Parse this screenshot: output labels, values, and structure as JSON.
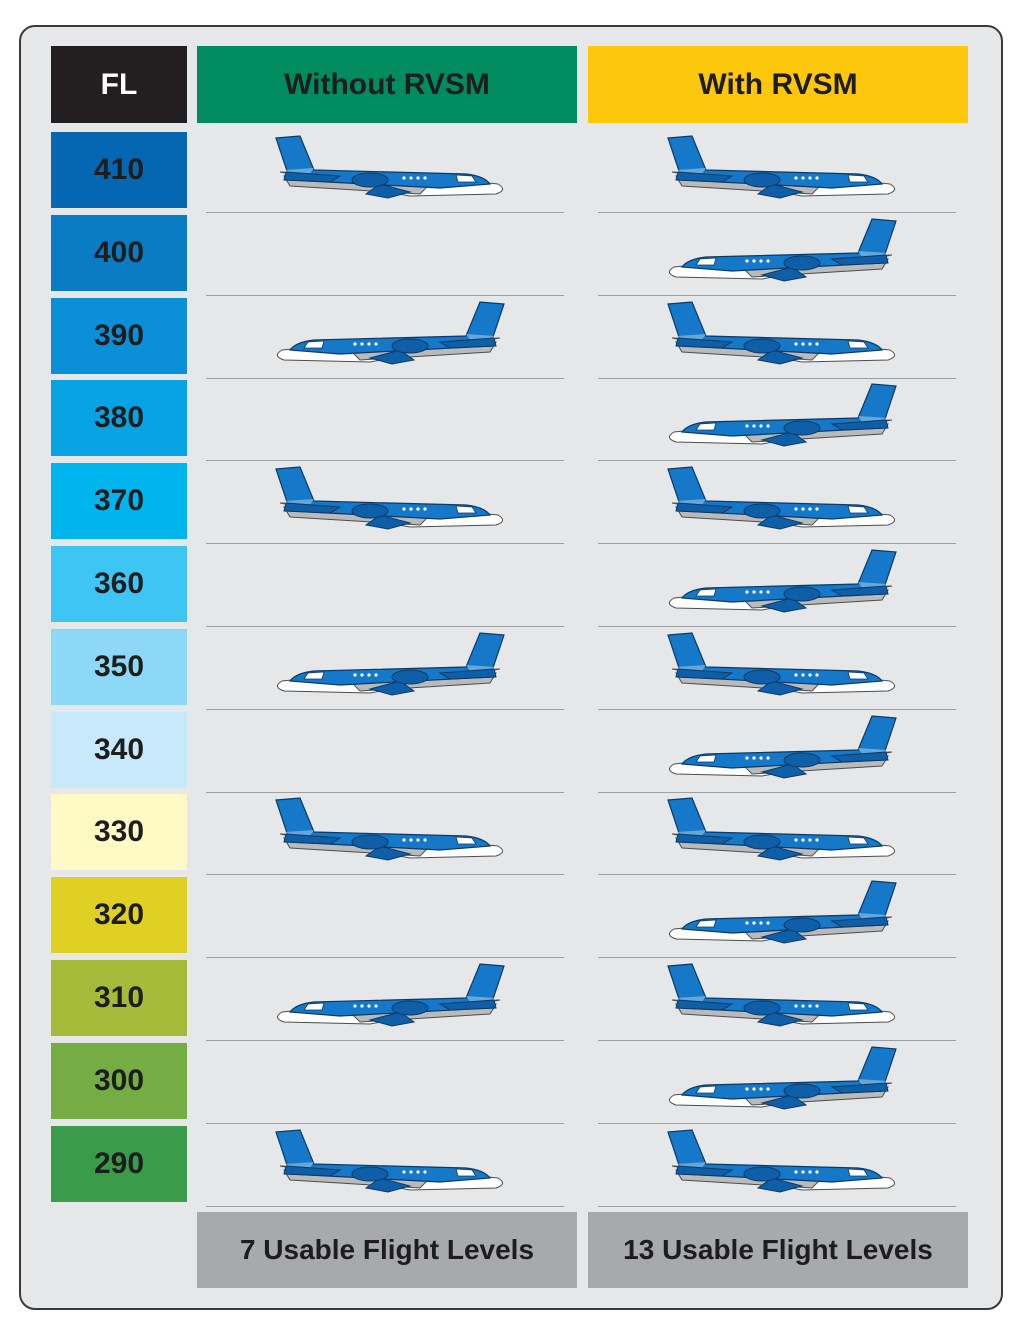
{
  "header": {
    "fl_label": "FL",
    "without_label": "Without RVSM",
    "with_label": "With RVSM"
  },
  "colors": {
    "fl_header": "#231f20",
    "without_header": "#008c5f",
    "with_header": "#fdc70c",
    "footer": "#a7a9ac",
    "panel": "#e6e7e8"
  },
  "levels": [
    {
      "fl": "410",
      "color": "#0567b1",
      "without": "east",
      "with": "east"
    },
    {
      "fl": "400",
      "color": "#0a7cc4",
      "without": "none",
      "with": "west"
    },
    {
      "fl": "390",
      "color": "#0b8fd6",
      "without": "west",
      "with": "east"
    },
    {
      "fl": "380",
      "color": "#07a3e4",
      "without": "none",
      "with": "west"
    },
    {
      "fl": "370",
      "color": "#00b4ee",
      "without": "east",
      "with": "east"
    },
    {
      "fl": "360",
      "color": "#3fc5f3",
      "without": "none",
      "with": "west"
    },
    {
      "fl": "350",
      "color": "#8cd8f6",
      "without": "west",
      "with": "east"
    },
    {
      "fl": "340",
      "color": "#c7e9f9",
      "without": "none",
      "with": "west"
    },
    {
      "fl": "330",
      "color": "#fff9c6",
      "without": "east",
      "with": "east"
    },
    {
      "fl": "320",
      "color": "#e0d023",
      "without": "none",
      "with": "west"
    },
    {
      "fl": "310",
      "color": "#a4ba38",
      "without": "west",
      "with": "east"
    },
    {
      "fl": "300",
      "color": "#74ad44",
      "without": "none",
      "with": "west"
    },
    {
      "fl": "290",
      "color": "#3a9b4a",
      "without": "east",
      "with": "east"
    }
  ],
  "footer": {
    "without_label": "7 Usable Flight Levels",
    "with_label": "13 Usable Flight Levels"
  },
  "icons": {
    "plane": "airplane-icon"
  }
}
